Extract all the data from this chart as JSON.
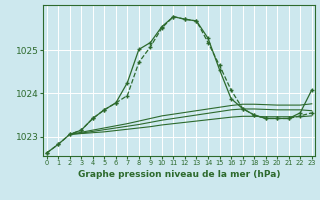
{
  "title": "Graphe pression niveau de la mer (hPa)",
  "background_color": "#cde8ee",
  "grid_color": "#ffffff",
  "line_color": "#2d6a2d",
  "x_ticks": [
    0,
    1,
    2,
    3,
    4,
    5,
    6,
    7,
    8,
    9,
    10,
    11,
    12,
    13,
    14,
    15,
    16,
    17,
    18,
    19,
    20,
    21,
    22,
    23
  ],
  "y_ticks": [
    1023,
    1024,
    1025
  ],
  "ylim": [
    1022.55,
    1026.05
  ],
  "xlim": [
    -0.3,
    23.3
  ],
  "lines": [
    {
      "x": [
        0,
        1,
        2,
        3,
        4,
        5,
        6,
        7,
        8,
        9,
        10,
        11,
        12,
        13,
        14,
        15,
        16,
        17,
        18,
        19,
        20,
        21,
        22,
        23
      ],
      "y": [
        1022.62,
        1022.82,
        1023.05,
        1023.15,
        1023.42,
        1023.62,
        1023.78,
        1023.95,
        1024.72,
        1025.08,
        1025.52,
        1025.78,
        1025.72,
        1025.68,
        1025.18,
        1024.65,
        1024.08,
        1023.65,
        1023.5,
        1023.42,
        1023.42,
        1023.42,
        1023.48,
        1023.55
      ],
      "marker": "+",
      "linestyle": "--",
      "linewidth": 0.9
    },
    {
      "x": [
        0,
        1,
        2,
        3,
        4,
        5,
        6,
        7,
        8,
        9,
        10,
        11,
        12,
        13,
        14,
        15,
        16,
        17,
        18,
        19,
        20,
        21,
        22,
        23
      ],
      "y": [
        1022.62,
        1022.82,
        1023.05,
        1023.15,
        1023.42,
        1023.62,
        1023.78,
        1024.25,
        1025.02,
        1025.18,
        1025.55,
        1025.78,
        1025.72,
        1025.68,
        1025.28,
        1024.55,
        1023.88,
        1023.65,
        1023.5,
        1023.42,
        1023.42,
        1023.42,
        1023.55,
        1024.08
      ],
      "marker": "+",
      "linestyle": "-",
      "linewidth": 0.9
    },
    {
      "x": [
        2,
        3,
        4,
        5,
        6,
        7,
        8,
        9,
        10,
        11,
        12,
        13,
        14,
        15,
        16,
        17,
        18,
        19,
        20,
        21,
        22,
        23
      ],
      "y": [
        1023.05,
        1023.1,
        1023.15,
        1023.2,
        1023.25,
        1023.3,
        1023.36,
        1023.42,
        1023.48,
        1023.52,
        1023.56,
        1023.6,
        1023.64,
        1023.68,
        1023.72,
        1023.75,
        1023.75,
        1023.74,
        1023.73,
        1023.73,
        1023.73,
        1023.76
      ],
      "marker": "None",
      "linestyle": "-",
      "linewidth": 0.8
    },
    {
      "x": [
        2,
        3,
        4,
        5,
        6,
        7,
        8,
        9,
        10,
        11,
        12,
        13,
        14,
        15,
        16,
        17,
        18,
        19,
        20,
        21,
        22,
        23
      ],
      "y": [
        1023.05,
        1023.08,
        1023.12,
        1023.16,
        1023.2,
        1023.24,
        1023.28,
        1023.33,
        1023.38,
        1023.42,
        1023.46,
        1023.5,
        1023.54,
        1023.58,
        1023.62,
        1023.64,
        1023.64,
        1023.63,
        1023.62,
        1023.62,
        1023.62,
        1023.6
      ],
      "marker": "None",
      "linestyle": "-",
      "linewidth": 0.8
    },
    {
      "x": [
        2,
        3,
        4,
        5,
        6,
        7,
        8,
        9,
        10,
        11,
        12,
        13,
        14,
        15,
        16,
        17,
        18,
        19,
        20,
        21,
        22,
        23
      ],
      "y": [
        1023.05,
        1023.07,
        1023.09,
        1023.11,
        1023.14,
        1023.17,
        1023.2,
        1023.23,
        1023.27,
        1023.3,
        1023.33,
        1023.36,
        1023.39,
        1023.42,
        1023.45,
        1023.47,
        1023.47,
        1023.46,
        1023.46,
        1023.46,
        1023.46,
        1023.48
      ],
      "marker": "None",
      "linestyle": "-",
      "linewidth": 0.8
    }
  ]
}
